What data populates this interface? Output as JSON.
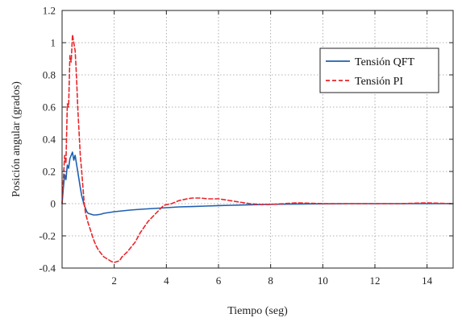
{
  "chart_data": {
    "type": "line",
    "xlabel": "Tiempo (seg)",
    "ylabel": "Posición angular (grados)",
    "xlim": [
      0,
      15
    ],
    "ylim": [
      -0.4,
      1.2
    ],
    "x_ticks": [
      0,
      2,
      4,
      6,
      8,
      10,
      12,
      14
    ],
    "y_ticks": [
      -0.4,
      -0.2,
      0,
      0.2,
      0.4,
      0.6,
      0.8,
      1,
      1.2
    ],
    "x_tick_labels": [
      "",
      "2",
      "4",
      "6",
      "8",
      "10",
      "12",
      "14"
    ],
    "y_tick_labels": [
      "-0.4",
      "-0.2",
      "0",
      "0.2",
      "0.4",
      "0.6",
      "0.8",
      "1",
      "1.2"
    ],
    "grid": true,
    "legend_position": "top-right",
    "series": [
      {
        "name": "Tensión QFT",
        "color": "#1f5fb0",
        "style": "solid",
        "x": [
          0,
          0.05,
          0.1,
          0.15,
          0.2,
          0.25,
          0.3,
          0.35,
          0.4,
          0.45,
          0.5,
          0.55,
          0.6,
          0.65,
          0.7,
          0.75,
          0.8,
          0.85,
          0.9,
          0.95,
          1.0,
          1.1,
          1.2,
          1.3,
          1.4,
          1.5,
          1.6,
          1.8,
          2.0,
          2.3,
          2.6,
          3.0,
          3.5,
          4.0,
          4.5,
          5.0,
          5.5,
          6.0,
          6.5,
          7.0,
          7.5,
          8.0,
          9.0,
          10.0,
          11.0,
          12.0,
          13.0,
          14.0,
          15.0
        ],
        "y": [
          0,
          0.1,
          0.18,
          0.15,
          0.24,
          0.22,
          0.28,
          0.3,
          0.32,
          0.27,
          0.3,
          0.25,
          0.2,
          0.15,
          0.1,
          0.05,
          0.02,
          -0.01,
          -0.03,
          -0.05,
          -0.06,
          -0.065,
          -0.07,
          -0.07,
          -0.068,
          -0.065,
          -0.06,
          -0.055,
          -0.05,
          -0.045,
          -0.04,
          -0.035,
          -0.03,
          -0.025,
          -0.02,
          -0.018,
          -0.015,
          -0.012,
          -0.01,
          -0.008,
          -0.006,
          -0.004,
          -0.002,
          -0.001,
          0,
          0,
          0,
          0,
          0
        ]
      },
      {
        "name": "Tensión  PI",
        "color": "#e8262b",
        "style": "dashed",
        "x": [
          0,
          0.05,
          0.1,
          0.15,
          0.2,
          0.25,
          0.3,
          0.35,
          0.4,
          0.45,
          0.5,
          0.55,
          0.6,
          0.65,
          0.7,
          0.75,
          0.8,
          0.85,
          0.9,
          1.0,
          1.1,
          1.2,
          1.3,
          1.4,
          1.5,
          1.6,
          1.7,
          1.8,
          1.9,
          2.0,
          2.1,
          2.2,
          2.3,
          2.5,
          2.8,
          3.0,
          3.3,
          3.6,
          3.9,
          4.2,
          4.5,
          4.8,
          5.0,
          5.3,
          5.6,
          6.0,
          6.4,
          6.8,
          7.2,
          7.6,
          8.0,
          8.5,
          9.0,
          10.0,
          11.0,
          12.0,
          13.0,
          14.0,
          15.0
        ],
        "y": [
          0,
          0.15,
          0.3,
          0.25,
          0.62,
          0.6,
          0.92,
          0.88,
          1.05,
          1.0,
          0.95,
          0.8,
          0.6,
          0.45,
          0.3,
          0.2,
          0.1,
          0.0,
          -0.06,
          -0.12,
          -0.17,
          -0.22,
          -0.26,
          -0.29,
          -0.31,
          -0.33,
          -0.34,
          -0.35,
          -0.36,
          -0.365,
          -0.36,
          -0.355,
          -0.33,
          -0.3,
          -0.24,
          -0.18,
          -0.11,
          -0.06,
          -0.01,
          0.0,
          0.02,
          0.03,
          0.035,
          0.035,
          0.03,
          0.03,
          0.02,
          0.01,
          0.0,
          -0.005,
          -0.005,
          0.0,
          0.005,
          0.0,
          0.0,
          0.0,
          0.0,
          0.005,
          0.0
        ]
      }
    ]
  }
}
